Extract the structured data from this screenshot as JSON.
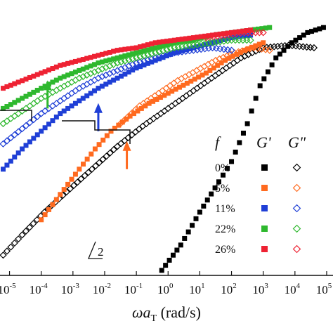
{
  "chart_data": {
    "type": "scatter",
    "title": "",
    "xlabel_parts": {
      "omega": "ω",
      "a": "a",
      "sub": "T",
      "unit": " (rad/s)"
    },
    "ylabel": "",
    "xscale": "log",
    "xlim": [
      -5.3,
      5.2
    ],
    "ylim": [
      0,
      1
    ],
    "x_ticks": [
      {
        "base": "10",
        "exp": "-5",
        "value": -5
      },
      {
        "base": "10",
        "exp": "-4",
        "value": -4
      },
      {
        "base": "10",
        "exp": "-3",
        "value": -3
      },
      {
        "base": "10",
        "exp": "-2",
        "value": -2
      },
      {
        "base": "10",
        "exp": "-1",
        "value": -1
      },
      {
        "base": "10",
        "exp": "0",
        "value": 0
      },
      {
        "base": "10",
        "exp": "1",
        "value": 1
      },
      {
        "base": "10",
        "exp": "2",
        "value": 2
      },
      {
        "base": "10",
        "exp": "3",
        "value": 3
      },
      {
        "base": "10",
        "exp": "4",
        "value": 4
      },
      {
        "base": "10",
        "exp": "5",
        "value": 5
      }
    ],
    "legend": {
      "header_f": "f",
      "header_gp": "G'",
      "header_gpp": "G\"",
      "position": "right"
    },
    "slope_label": "2",
    "series": [
      {
        "name": "0%",
        "color": "#000000",
        "fill_gp": "#000000",
        "gp": [
          [
            -0.2,
            0.02
          ],
          [
            0.4,
            0.12
          ],
          [
            1.0,
            0.25
          ],
          [
            1.6,
            0.37
          ],
          [
            2.0,
            0.45
          ],
          [
            2.5,
            0.6
          ],
          [
            2.9,
            0.75
          ],
          [
            3.4,
            0.86
          ],
          [
            3.9,
            0.92
          ],
          [
            4.4,
            0.96
          ],
          [
            4.9,
            0.98
          ]
        ],
        "gpp": [
          [
            -5.2,
            0.08
          ],
          [
            -4.6,
            0.16
          ],
          [
            -3.9,
            0.25
          ],
          [
            -3.2,
            0.33
          ],
          [
            -2.4,
            0.42
          ],
          [
            -1.6,
            0.51
          ],
          [
            -0.8,
            0.59
          ],
          [
            0.0,
            0.66
          ],
          [
            0.8,
            0.73
          ],
          [
            1.6,
            0.8
          ],
          [
            2.3,
            0.86
          ],
          [
            3.0,
            0.9
          ],
          [
            3.8,
            0.91
          ],
          [
            4.6,
            0.9
          ]
        ]
      },
      {
        "name": "5%",
        "color": "#ff6a1f",
        "fill_gp": "#ff6a1f",
        "gp": [
          [
            -4.0,
            0.22
          ],
          [
            -3.4,
            0.32
          ],
          [
            -2.8,
            0.42
          ],
          [
            -2.3,
            0.5
          ],
          [
            -1.8,
            0.57
          ],
          [
            -1.2,
            0.63
          ],
          [
            -0.6,
            0.68
          ],
          [
            0.0,
            0.72
          ],
          [
            0.6,
            0.76
          ],
          [
            1.2,
            0.8
          ],
          [
            1.8,
            0.85
          ],
          [
            2.4,
            0.89
          ],
          [
            3.0,
            0.92
          ]
        ],
        "gpp": [
          [
            -1.5,
            0.6
          ],
          [
            -0.9,
            0.67
          ],
          [
            -0.3,
            0.72
          ],
          [
            0.3,
            0.77
          ],
          [
            0.9,
            0.81
          ],
          [
            1.5,
            0.85
          ],
          [
            2.1,
            0.88
          ],
          [
            2.7,
            0.9
          ],
          [
            3.2,
            0.89
          ]
        ]
      },
      {
        "name": "11%",
        "color": "#1f3fd6",
        "fill_gp": "#1f3fd6",
        "gp": [
          [
            -5.2,
            0.42
          ],
          [
            -4.6,
            0.5
          ],
          [
            -4.0,
            0.57
          ],
          [
            -3.4,
            0.64
          ],
          [
            -2.8,
            0.69
          ],
          [
            -2.2,
            0.74
          ],
          [
            -1.6,
            0.78
          ],
          [
            -1.0,
            0.82
          ],
          [
            -0.4,
            0.85
          ],
          [
            0.2,
            0.88
          ],
          [
            0.8,
            0.9
          ],
          [
            1.4,
            0.92
          ],
          [
            2.0,
            0.94
          ],
          [
            2.6,
            0.95
          ]
        ],
        "gpp": [
          [
            -5.2,
            0.52
          ],
          [
            -4.6,
            0.58
          ],
          [
            -4.0,
            0.64
          ],
          [
            -3.4,
            0.69
          ],
          [
            -2.8,
            0.74
          ],
          [
            -2.2,
            0.78
          ],
          [
            -1.6,
            0.81
          ],
          [
            -1.0,
            0.84
          ],
          [
            -0.4,
            0.86
          ],
          [
            0.2,
            0.88
          ],
          [
            0.8,
            0.89
          ],
          [
            1.4,
            0.9
          ],
          [
            2.0,
            0.89
          ]
        ]
      },
      {
        "name": "22%",
        "color": "#2eb82e",
        "fill_gp": "#2eb82e",
        "gp": [
          [
            -5.2,
            0.66
          ],
          [
            -4.6,
            0.7
          ],
          [
            -4.0,
            0.74
          ],
          [
            -3.4,
            0.78
          ],
          [
            -2.8,
            0.81
          ],
          [
            -2.2,
            0.84
          ],
          [
            -1.6,
            0.86
          ],
          [
            -1.0,
            0.88
          ],
          [
            -0.4,
            0.9
          ],
          [
            0.2,
            0.92
          ],
          [
            0.8,
            0.93
          ],
          [
            1.4,
            0.95
          ],
          [
            2.0,
            0.96
          ],
          [
            2.6,
            0.97
          ],
          [
            3.2,
            0.98
          ]
        ],
        "gpp": [
          [
            -5.2,
            0.6
          ],
          [
            -4.6,
            0.65
          ],
          [
            -4.0,
            0.7
          ],
          [
            -3.4,
            0.74
          ],
          [
            -2.8,
            0.78
          ],
          [
            -2.2,
            0.81
          ],
          [
            -1.6,
            0.84
          ],
          [
            -1.0,
            0.86
          ],
          [
            -0.4,
            0.88
          ],
          [
            0.2,
            0.9
          ],
          [
            0.8,
            0.91
          ],
          [
            1.4,
            0.92
          ],
          [
            2.0,
            0.93
          ],
          [
            2.6,
            0.93
          ]
        ]
      },
      {
        "name": "26%",
        "color": "#ee2233",
        "fill_gp": "#ee2233",
        "gp": [
          [
            -5.2,
            0.74
          ],
          [
            -4.6,
            0.77
          ],
          [
            -4.0,
            0.8
          ],
          [
            -3.4,
            0.83
          ],
          [
            -2.8,
            0.85
          ],
          [
            -2.2,
            0.87
          ],
          [
            -1.6,
            0.89
          ],
          [
            -1.0,
            0.9
          ],
          [
            -0.4,
            0.92
          ],
          [
            0.2,
            0.93
          ],
          [
            0.8,
            0.94
          ],
          [
            1.4,
            0.95
          ],
          [
            2.0,
            0.96
          ],
          [
            2.6,
            0.97
          ]
        ],
        "gpp": [
          [
            1.2,
            0.94
          ],
          [
            1.8,
            0.95
          ],
          [
            2.4,
            0.96
          ],
          [
            3.0,
            0.96
          ]
        ]
      }
    ]
  }
}
